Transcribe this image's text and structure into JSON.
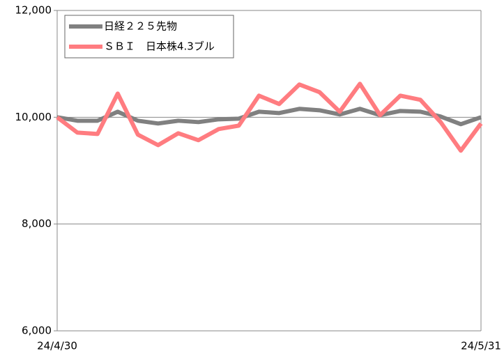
{
  "chart_data": {
    "type": "line",
    "categories": [
      "24/4/30",
      null,
      null,
      null,
      null,
      null,
      null,
      null,
      null,
      null,
      null,
      null,
      null,
      null,
      null,
      null,
      null,
      null,
      null,
      null,
      null,
      "24/5/31"
    ],
    "series": [
      {
        "name": "日経２２５先物",
        "color": "#808080",
        "values": [
          10000,
          9935,
          9935,
          10104,
          9935,
          9883,
          9935,
          9909,
          9961,
          9974,
          10104,
          10078,
          10157,
          10130,
          10052,
          10157,
          10039,
          10117,
          10104,
          10013,
          9870,
          10000
        ]
      },
      {
        "name": "ＳＢＩ　日本株4.3ブル",
        "color": "#ff7c80",
        "values": [
          10000,
          9713,
          9687,
          10443,
          9674,
          9478,
          9700,
          9570,
          9778,
          9843,
          10404,
          10248,
          10613,
          10470,
          10104,
          10626,
          10039,
          10404,
          10326,
          9909,
          9374,
          9883
        ]
      }
    ],
    "ylim": [
      6000,
      12000
    ],
    "yticks": [
      {
        "value": 6000,
        "label": "6,000"
      },
      {
        "value": 8000,
        "label": "8,000"
      },
      {
        "value": 10000,
        "label": "10,000"
      },
      {
        "value": 12000,
        "label": "12,000"
      }
    ],
    "grid": true,
    "legend": "upper left"
  }
}
